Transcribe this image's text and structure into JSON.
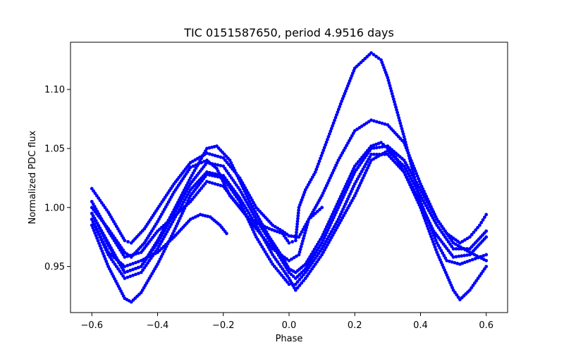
{
  "chart_data": {
    "type": "scatter",
    "title": "TIC 0151587650, period 4.9516 days",
    "xlabel": "Phase",
    "ylabel": "Normalized PDC flux",
    "xlim": [
      -0.665,
      0.665
    ],
    "ylim": [
      0.911,
      1.14
    ],
    "xticks": [
      -0.6,
      -0.4,
      -0.2,
      0.0,
      0.2,
      0.4,
      0.6
    ],
    "xtick_labels": [
      "−0.6",
      "−0.4",
      "−0.2",
      "0.0",
      "0.2",
      "0.4",
      "0.6"
    ],
    "yticks": [
      0.95,
      1.0,
      1.05,
      1.1
    ],
    "ytick_labels": [
      "0.95",
      "1.00",
      "1.05",
      "1.10"
    ],
    "grid": false,
    "marker_color": "#0000ff",
    "series": [
      {
        "points": [
          [
            -0.6,
            1.016
          ],
          [
            -0.55,
            0.996
          ],
          [
            -0.5,
            0.972
          ],
          [
            -0.48,
            0.97
          ],
          [
            -0.44,
            0.982
          ],
          [
            -0.4,
            0.999
          ],
          [
            -0.35,
            1.02
          ],
          [
            -0.3,
            1.038
          ],
          [
            -0.25,
            1.046
          ],
          [
            -0.2,
            1.042
          ],
          [
            -0.15,
            1.025
          ],
          [
            -0.1,
            1.0
          ],
          [
            -0.05,
            0.985
          ],
          [
            -0.02,
            0.98
          ],
          [
            0.0,
            0.976
          ],
          [
            0.03,
            0.975
          ],
          [
            0.06,
            0.99
          ],
          [
            0.1,
            1.01
          ],
          [
            0.15,
            1.04
          ],
          [
            0.2,
            1.065
          ],
          [
            0.25,
            1.074
          ],
          [
            0.3,
            1.07
          ],
          [
            0.35,
            1.055
          ],
          [
            0.4,
            1.02
          ],
          [
            0.45,
            0.99
          ],
          [
            0.48,
            0.978
          ],
          [
            0.52,
            0.97
          ],
          [
            0.55,
            0.975
          ],
          [
            0.58,
            0.985
          ],
          [
            0.6,
            0.994
          ]
        ]
      },
      {
        "points": [
          [
            -0.6,
            1.0
          ],
          [
            -0.55,
            0.982
          ],
          [
            -0.5,
            0.962
          ],
          [
            -0.48,
            0.958
          ],
          [
            -0.44,
            0.97
          ],
          [
            -0.4,
            0.988
          ],
          [
            -0.35,
            1.013
          ],
          [
            -0.3,
            1.034
          ],
          [
            -0.25,
            1.04
          ],
          [
            -0.22,
            1.033
          ],
          [
            -0.18,
            1.01
          ],
          [
            -0.12,
            0.99
          ],
          [
            -0.06,
            0.982
          ],
          [
            -0.02,
            0.978
          ],
          [
            0.0,
            0.97
          ],
          [
            0.02,
            0.972
          ],
          [
            0.03,
            1.0
          ],
          [
            0.05,
            1.015
          ],
          [
            0.08,
            1.03
          ],
          [
            0.12,
            1.06
          ],
          [
            0.16,
            1.09
          ],
          [
            0.2,
            1.118
          ],
          [
            0.25,
            1.131
          ],
          [
            0.28,
            1.125
          ],
          [
            0.3,
            1.11
          ],
          [
            0.35,
            1.06
          ],
          [
            0.4,
            1.005
          ],
          [
            0.45,
            0.97
          ],
          [
            0.48,
            0.955
          ],
          [
            0.52,
            0.952
          ],
          [
            0.55,
            0.955
          ],
          [
            0.6,
            0.96
          ]
        ]
      },
      {
        "points": [
          [
            -0.6,
            0.985
          ],
          [
            -0.55,
            0.95
          ],
          [
            -0.5,
            0.923
          ],
          [
            -0.48,
            0.92
          ],
          [
            -0.45,
            0.928
          ],
          [
            -0.4,
            0.952
          ],
          [
            -0.35,
            0.98
          ],
          [
            -0.3,
            1.01
          ],
          [
            -0.25,
            1.028
          ],
          [
            -0.2,
            1.025
          ],
          [
            -0.15,
            1.005
          ],
          [
            -0.1,
            0.975
          ],
          [
            -0.05,
            0.952
          ],
          [
            0.0,
            0.935
          ],
          [
            0.02,
            0.935
          ],
          [
            0.05,
            0.945
          ],
          [
            0.1,
            0.965
          ],
          [
            0.15,
            0.99
          ],
          [
            0.2,
            1.02
          ],
          [
            0.25,
            1.045
          ],
          [
            0.3,
            1.045
          ],
          [
            0.35,
            1.03
          ],
          [
            0.4,
            1.0
          ],
          [
            0.45,
            0.962
          ],
          [
            0.5,
            0.93
          ],
          [
            0.52,
            0.922
          ],
          [
            0.55,
            0.93
          ],
          [
            0.6,
            0.95
          ]
        ]
      },
      {
        "points": [
          [
            -0.6,
            0.995
          ],
          [
            -0.55,
            0.97
          ],
          [
            -0.5,
            0.945
          ],
          [
            -0.45,
            0.95
          ],
          [
            -0.4,
            0.972
          ],
          [
            -0.35,
            0.998
          ],
          [
            -0.3,
            1.025
          ],
          [
            -0.25,
            1.05
          ],
          [
            -0.22,
            1.052
          ],
          [
            -0.18,
            1.04
          ],
          [
            -0.12,
            1.005
          ],
          [
            -0.06,
            0.975
          ],
          [
            -0.02,
            0.958
          ],
          [
            0.0,
            0.948
          ],
          [
            0.02,
            0.945
          ],
          [
            0.05,
            0.952
          ],
          [
            0.1,
            0.975
          ],
          [
            0.15,
            1.005
          ],
          [
            0.2,
            1.035
          ],
          [
            0.25,
            1.052
          ],
          [
            0.28,
            1.055
          ],
          [
            0.32,
            1.045
          ],
          [
            0.38,
            1.015
          ],
          [
            0.44,
            0.98
          ],
          [
            0.5,
            0.958
          ],
          [
            0.55,
            0.96
          ],
          [
            0.6,
            0.975
          ]
        ]
      },
      {
        "points": [
          [
            -0.6,
            0.99
          ],
          [
            -0.55,
            0.962
          ],
          [
            -0.5,
            0.95
          ],
          [
            -0.45,
            0.955
          ],
          [
            -0.4,
            0.962
          ],
          [
            -0.35,
            0.975
          ],
          [
            -0.3,
            0.99
          ],
          [
            -0.27,
            0.994
          ],
          [
            -0.24,
            0.992
          ],
          [
            -0.21,
            0.985
          ],
          [
            -0.19,
            0.978
          ]
        ]
      },
      {
        "points": [
          [
            -0.6,
            1.005
          ],
          [
            -0.55,
            0.98
          ],
          [
            -0.5,
            0.958
          ],
          [
            -0.45,
            0.962
          ],
          [
            -0.4,
            0.98
          ],
          [
            -0.3,
            1.005
          ],
          [
            -0.25,
            1.022
          ],
          [
            -0.2,
            1.018
          ],
          [
            -0.15,
            1.0
          ],
          [
            -0.1,
            0.982
          ],
          [
            -0.05,
            0.965
          ],
          [
            0.0,
            0.955
          ],
          [
            0.03,
            0.96
          ],
          [
            0.06,
            0.99
          ],
          [
            0.1,
            1.0
          ]
        ]
      },
      {
        "points": [
          [
            -0.6,
            0.99
          ],
          [
            -0.55,
            0.96
          ],
          [
            -0.5,
            0.94
          ],
          [
            -0.45,
            0.945
          ],
          [
            -0.4,
            0.965
          ],
          [
            -0.35,
            0.99
          ],
          [
            -0.3,
            1.015
          ],
          [
            -0.25,
            1.03
          ],
          [
            -0.2,
            1.027
          ],
          [
            -0.15,
            1.008
          ],
          [
            -0.1,
            0.985
          ],
          [
            -0.05,
            0.96
          ],
          [
            0.0,
            0.94
          ],
          [
            0.02,
            0.93
          ],
          [
            0.05,
            0.94
          ],
          [
            0.1,
            0.96
          ],
          [
            0.15,
            0.985
          ],
          [
            0.2,
            1.01
          ],
          [
            0.25,
            1.04
          ],
          [
            0.3,
            1.048
          ],
          [
            0.35,
            1.035
          ],
          [
            0.4,
            1.01
          ],
          [
            0.45,
            0.985
          ],
          [
            0.5,
            0.965
          ],
          [
            0.55,
            0.965
          ],
          [
            0.6,
            0.98
          ]
        ]
      },
      {
        "points": [
          [
            -0.6,
            0.995
          ],
          [
            -0.55,
            0.968
          ],
          [
            -0.5,
            0.945
          ],
          [
            -0.45,
            0.95
          ],
          [
            -0.4,
            0.97
          ],
          [
            -0.35,
            0.995
          ],
          [
            -0.3,
            1.02
          ],
          [
            -0.25,
            1.038
          ],
          [
            -0.2,
            1.035
          ],
          [
            -0.15,
            1.015
          ],
          [
            -0.1,
            0.99
          ],
          [
            -0.05,
            0.968
          ],
          [
            0.0,
            0.945
          ],
          [
            0.02,
            0.94
          ],
          [
            0.05,
            0.948
          ],
          [
            0.1,
            0.97
          ],
          [
            0.15,
            1.0
          ],
          [
            0.2,
            1.03
          ],
          [
            0.25,
            1.05
          ],
          [
            0.3,
            1.052
          ],
          [
            0.35,
            1.04
          ],
          [
            0.4,
            1.015
          ],
          [
            0.45,
            0.99
          ],
          [
            0.5,
            0.97
          ],
          [
            0.55,
            0.962
          ],
          [
            0.6,
            0.955
          ]
        ]
      }
    ]
  }
}
